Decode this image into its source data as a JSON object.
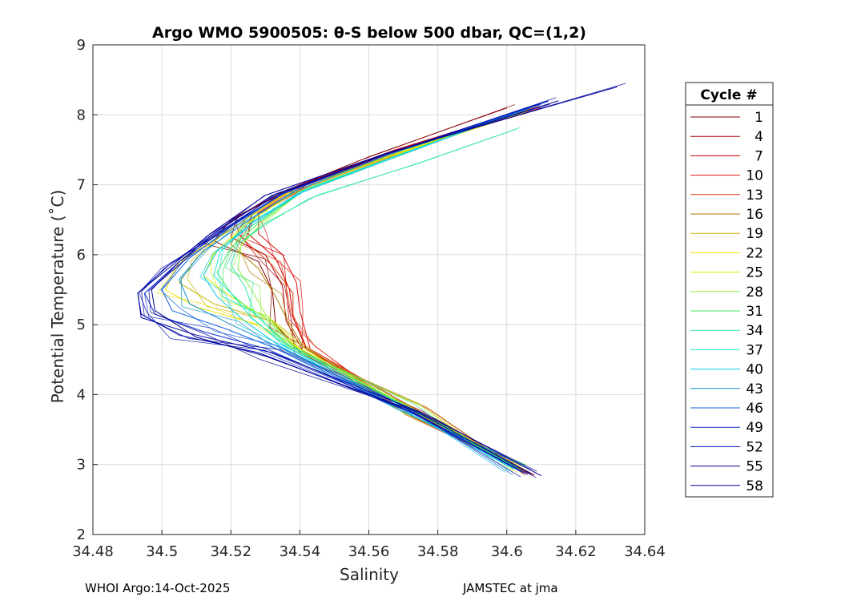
{
  "chart_data": {
    "type": "line",
    "title": "Argo WMO 5900505: θ-S below 500 dbar,  QC=(1,2)",
    "xlabel": "Salinity",
    "ylabel": "Potential Temperature (˚C)",
    "xlim": [
      34.48,
      34.64
    ],
    "ylim": [
      2,
      9
    ],
    "xticks": [
      "34.48",
      "34.5",
      "34.52",
      "34.54",
      "34.56",
      "34.58",
      "34.6",
      "34.62",
      "34.64"
    ],
    "yticks": [
      "2",
      "3",
      "4",
      "5",
      "6",
      "7",
      "8",
      "9"
    ],
    "grid": true,
    "legend": {
      "title": "Cycle #",
      "placement": "right",
      "entries": [
        {
          "label": "1",
          "color": "#8b0000"
        },
        {
          "label": "4",
          "color": "#a80000"
        },
        {
          "label": "7",
          "color": "#cc0000"
        },
        {
          "label": "10",
          "color": "#e01010"
        },
        {
          "label": "13",
          "color": "#e03a10"
        },
        {
          "label": "16",
          "color": "#b07a00"
        },
        {
          "label": "19",
          "color": "#c8b400"
        },
        {
          "label": "22",
          "color": "#f0e000"
        },
        {
          "label": "25",
          "color": "#d0f000"
        },
        {
          "label": "28",
          "color": "#90f040"
        },
        {
          "label": "31",
          "color": "#40e860"
        },
        {
          "label": "34",
          "color": "#30e8a0"
        },
        {
          "label": "37",
          "color": "#20e8d0"
        },
        {
          "label": "40",
          "color": "#10c8e8"
        },
        {
          "label": "43",
          "color": "#1090d0"
        },
        {
          "label": "46",
          "color": "#1060e0"
        },
        {
          "label": "49",
          "color": "#1030d0"
        },
        {
          "label": "52",
          "color": "#0010b0"
        },
        {
          "label": "55",
          "color": "#000090"
        },
        {
          "label": "58",
          "color": "#0000a0"
        }
      ]
    },
    "series": [
      {
        "name": "1",
        "color": "#8b0000",
        "x": [
          34.608,
          34.575,
          34.54,
          34.533,
          34.532,
          34.528,
          34.515,
          34.52,
          34.535,
          34.56,
          34.6
        ],
        "y": [
          2.85,
          3.7,
          4.6,
          5.0,
          5.5,
          5.9,
          6.2,
          6.5,
          6.9,
          7.4,
          8.1
        ]
      },
      {
        "name": "4",
        "color": "#a80000",
        "x": [
          34.607,
          34.574,
          34.541,
          34.536,
          34.535,
          34.53,
          34.52,
          34.522,
          34.538,
          34.565,
          34.6
        ],
        "y": [
          2.87,
          3.72,
          4.62,
          5.05,
          5.55,
          6.0,
          6.25,
          6.55,
          6.95,
          7.45,
          8.0
        ]
      },
      {
        "name": "7",
        "color": "#cc0000",
        "x": [
          34.606,
          34.574,
          34.542,
          34.538,
          34.537,
          34.533,
          34.525,
          34.526,
          34.54,
          34.568,
          34.605
        ],
        "y": [
          2.88,
          3.74,
          4.64,
          5.1,
          5.5,
          5.95,
          6.3,
          6.6,
          7.0,
          7.5,
          8.05
        ]
      },
      {
        "name": "10",
        "color": "#e01010",
        "x": [
          34.606,
          34.575,
          34.543,
          34.54,
          34.539,
          34.535,
          34.528,
          34.528,
          34.542,
          34.57,
          34.61
        ],
        "y": [
          2.86,
          3.75,
          4.65,
          5.2,
          5.6,
          6.0,
          6.3,
          6.6,
          7.0,
          7.5,
          8.1
        ]
      },
      {
        "name": "13",
        "color": "#e03a10",
        "x": [
          34.605,
          34.573,
          34.542,
          34.538,
          34.538,
          34.532,
          34.524,
          34.527,
          34.541,
          34.569,
          34.608
        ],
        "y": [
          2.88,
          3.76,
          4.66,
          5.15,
          5.45,
          5.85,
          6.2,
          6.55,
          6.95,
          7.45,
          8.1
        ]
      },
      {
        "name": "16",
        "color": "#b07a00",
        "x": [
          34.606,
          34.574,
          34.541,
          34.536,
          34.533,
          34.528,
          34.52,
          34.524,
          34.539,
          34.566,
          34.607
        ],
        "y": [
          2.9,
          3.78,
          4.68,
          5.1,
          5.4,
          5.8,
          6.15,
          6.5,
          6.95,
          7.45,
          8.05
        ]
      },
      {
        "name": "19",
        "color": "#c8b400",
        "x": [
          34.605,
          34.573,
          34.54,
          34.532,
          34.515,
          34.505,
          34.51,
          34.52,
          34.536,
          34.565,
          34.605
        ],
        "y": [
          2.9,
          3.77,
          4.66,
          5.05,
          5.3,
          5.6,
          5.95,
          6.4,
          6.9,
          7.4,
          8.05
        ]
      },
      {
        "name": "22",
        "color": "#f0e000",
        "x": [
          34.605,
          34.573,
          34.54,
          34.528,
          34.51,
          34.501,
          34.505,
          34.518,
          34.535,
          34.566,
          34.606
        ],
        "y": [
          2.92,
          3.78,
          4.66,
          5.0,
          5.25,
          5.5,
          5.9,
          6.3,
          6.85,
          7.4,
          8.05
        ]
      },
      {
        "name": "25",
        "color": "#d0f000",
        "x": [
          34.604,
          34.572,
          34.539,
          34.53,
          34.52,
          34.512,
          34.515,
          34.525,
          34.538,
          34.568,
          34.607
        ],
        "y": [
          2.93,
          3.8,
          4.68,
          5.1,
          5.4,
          5.7,
          6.0,
          6.45,
          6.9,
          7.45,
          8.1
        ]
      },
      {
        "name": "28",
        "color": "#90f040",
        "x": [
          34.604,
          34.572,
          34.538,
          34.53,
          34.526,
          34.522,
          34.523,
          34.53,
          34.542,
          34.57,
          34.607
        ],
        "y": [
          2.95,
          3.82,
          4.7,
          5.15,
          5.5,
          5.8,
          6.15,
          6.5,
          6.95,
          7.45,
          8.12
        ]
      },
      {
        "name": "31",
        "color": "#40e860",
        "x": [
          34.603,
          34.571,
          34.537,
          34.528,
          34.52,
          34.516,
          34.52,
          34.528,
          34.54,
          34.568,
          34.606
        ],
        "y": [
          2.95,
          3.82,
          4.7,
          5.1,
          5.45,
          5.75,
          6.1,
          6.45,
          6.9,
          7.4,
          8.1
        ]
      },
      {
        "name": "34",
        "color": "#30e8a0",
        "x": [
          34.603,
          34.571,
          34.536,
          34.527,
          34.524,
          34.52,
          34.522,
          34.53,
          34.545,
          34.574,
          34.603
        ],
        "y": [
          2.96,
          3.83,
          4.72,
          5.15,
          5.55,
          5.85,
          6.15,
          6.45,
          6.85,
          7.3,
          7.8
        ]
      },
      {
        "name": "37",
        "color": "#20e8d0",
        "x": [
          34.602,
          34.57,
          34.535,
          34.526,
          34.52,
          34.515,
          34.517,
          34.526,
          34.54,
          34.567,
          34.604
        ],
        "y": [
          2.95,
          3.82,
          4.72,
          5.1,
          5.45,
          5.7,
          6.05,
          6.45,
          6.9,
          7.4,
          8.05
        ]
      },
      {
        "name": "40",
        "color": "#10c8e8",
        "x": [
          34.602,
          34.569,
          34.534,
          34.524,
          34.516,
          34.512,
          34.516,
          34.526,
          34.541,
          34.568,
          34.605
        ],
        "y": [
          2.94,
          3.8,
          4.7,
          5.05,
          5.4,
          5.7,
          6.05,
          6.45,
          6.9,
          7.4,
          8.08
        ]
      },
      {
        "name": "43",
        "color": "#1090d0",
        "x": [
          34.603,
          34.57,
          34.533,
          34.52,
          34.508,
          34.505,
          34.512,
          34.524,
          34.538,
          34.567,
          34.607
        ],
        "y": [
          2.93,
          3.8,
          4.7,
          5.0,
          5.3,
          5.65,
          6.05,
          6.45,
          6.9,
          7.45,
          8.1
        ]
      },
      {
        "name": "46",
        "color": "#1060e0",
        "x": [
          34.604,
          34.571,
          34.532,
          34.518,
          34.503,
          34.5,
          34.508,
          34.52,
          34.536,
          34.566,
          34.61
        ],
        "y": [
          2.9,
          3.78,
          4.68,
          4.95,
          5.2,
          5.5,
          5.95,
          6.4,
          6.9,
          7.45,
          8.15
        ]
      },
      {
        "name": "49",
        "color": "#1030d0",
        "x": [
          34.605,
          34.572,
          34.53,
          34.512,
          34.498,
          34.495,
          34.505,
          34.518,
          34.534,
          34.566,
          34.612
        ],
        "y": [
          2.88,
          3.76,
          4.66,
          4.9,
          5.15,
          5.45,
          5.9,
          6.35,
          6.85,
          7.45,
          8.2
        ]
      },
      {
        "name": "52",
        "color": "#0010b0",
        "x": [
          34.606,
          34.573,
          34.528,
          34.505,
          34.494,
          34.493,
          34.502,
          34.516,
          34.533,
          34.566,
          34.612
        ],
        "y": [
          2.86,
          3.74,
          4.6,
          4.85,
          5.15,
          5.45,
          5.85,
          6.3,
          6.85,
          7.45,
          8.2
        ]
      },
      {
        "name": "55",
        "color": "#000090",
        "x": [
          34.607,
          34.574,
          34.53,
          34.51,
          34.498,
          34.497,
          34.505,
          34.515,
          34.532,
          34.566,
          34.615
        ],
        "y": [
          2.87,
          3.75,
          4.55,
          4.82,
          5.2,
          5.5,
          5.9,
          6.3,
          6.85,
          7.45,
          8.2
        ]
      },
      {
        "name": "58",
        "color": "#0000a0",
        "x": [
          34.61,
          34.576,
          34.532,
          34.51,
          34.494,
          34.493,
          34.503,
          34.514,
          34.53,
          34.565,
          34.632
        ],
        "y": [
          2.84,
          3.73,
          4.6,
          4.85,
          5.1,
          5.45,
          5.85,
          6.3,
          6.85,
          7.45,
          8.4
        ]
      }
    ]
  },
  "footer": {
    "left": "WHOI Argo:14-Oct-2025",
    "right": "JAMSTEC at jma"
  }
}
